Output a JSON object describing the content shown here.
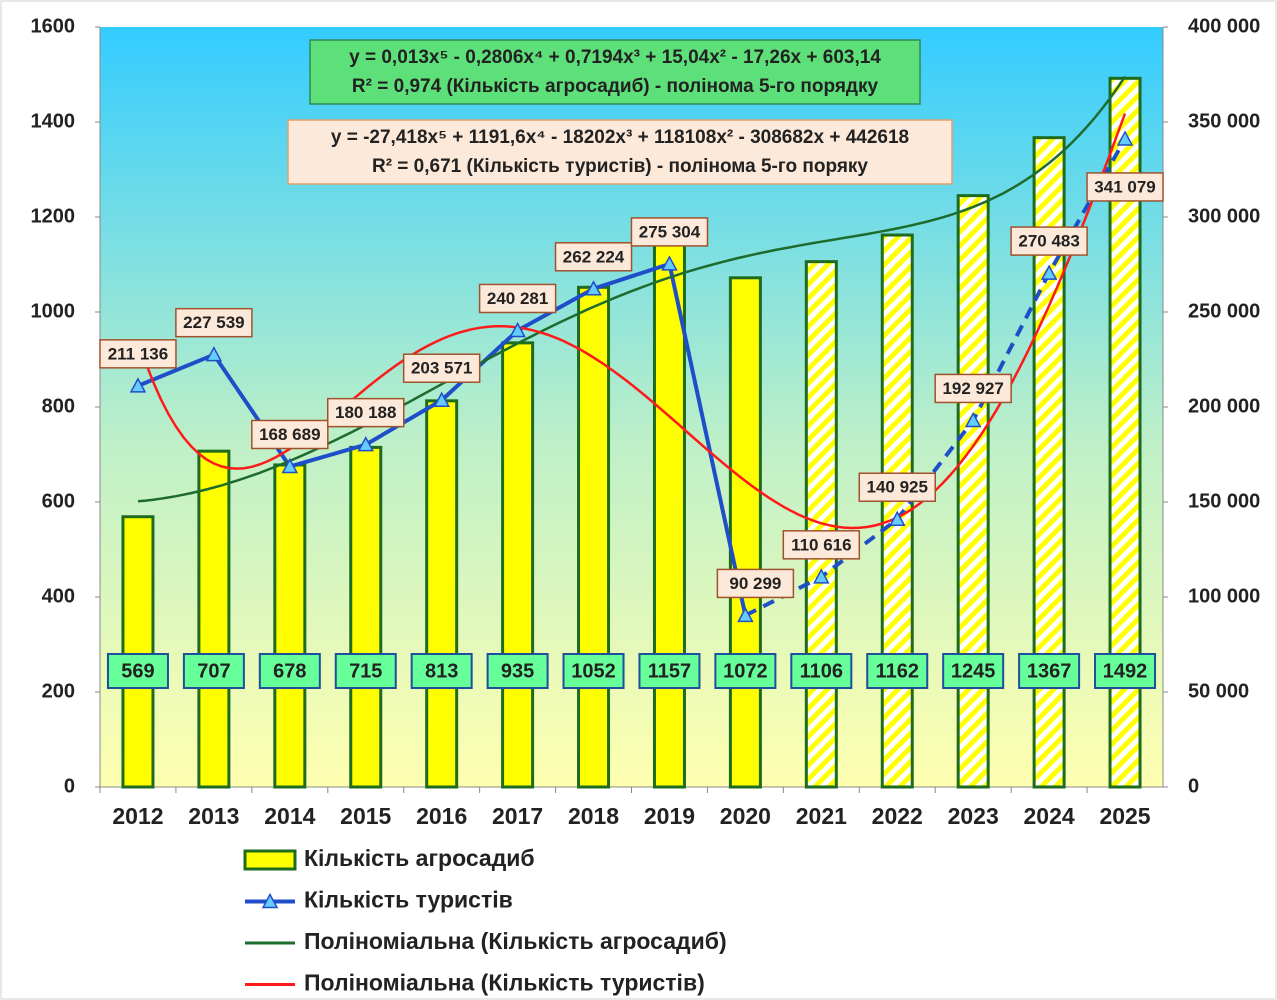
{
  "chart_data": {
    "type": "bar_line",
    "categories": [
      "2012",
      "2013",
      "2014",
      "2015",
      "2016",
      "2017",
      "2018",
      "2019",
      "2020",
      "2021",
      "2022",
      "2023",
      "2024",
      "2025"
    ],
    "forecast_from": "2021",
    "series": [
      {
        "name": "Кількість агросадиб",
        "type": "bar",
        "color": "#ffff00",
        "border": "#1e6b1e",
        "values": [
          569,
          707,
          678,
          715,
          813,
          935,
          1052,
          1157,
          1072,
          1106,
          1162,
          1245,
          1367,
          1492
        ]
      },
      {
        "name": "Кількість туристів",
        "type": "line",
        "axis": "y2",
        "color": "#1f4fc8",
        "values": [
          211136,
          227539,
          168689,
          180188,
          203571,
          240281,
          262224,
          275304,
          90299,
          110616,
          140925,
          192927,
          270483,
          341079
        ],
        "value_labels": [
          "211 136",
          "227 539",
          "168 689",
          "180 188",
          "203 571",
          "240 281",
          "262 224",
          "275 304",
          "90 299",
          "110 616",
          "140 925",
          "192 927",
          "270 483",
          "341 079"
        ]
      }
    ],
    "trendlines": [
      {
        "name": "Поліноміальна (Кількість агросадиб)",
        "color": "#1e6b2e",
        "axis": "y",
        "coefficients": [
          0.013,
          -0.2806,
          0.7194,
          15.04,
          -17.26,
          603.14
        ],
        "equation": [
          "y = 0,013x⁵ - 0,2806x⁴ + 0,7194x³ + 15,04x² - 17,26x + 603,14",
          "R² = 0,974 (Кількість агросадиб)  - полінома 5-го порядку"
        ]
      },
      {
        "name": "Поліноміальна (Кількість туристів)",
        "color": "#ff1a1a",
        "axis": "y2",
        "coefficients": [
          -27.418,
          1191.6,
          -18202,
          118108,
          -308682,
          442618
        ],
        "equation": [
          "y = -27,418x⁵ + 1191,6x⁴ - 18202x³ + 118108x² - 308682x + 442618",
          "R² = 0,671 (Кількість туристів) - полінома 5-го поряку"
        ]
      }
    ],
    "ylim": [
      0,
      1600
    ],
    "yticks": [
      0,
      200,
      400,
      600,
      800,
      1000,
      1200,
      1400,
      1600
    ],
    "y2lim": [
      0,
      400000
    ],
    "y2ticks": [
      0,
      {
        "value": 50000,
        "label": "50 000"
      },
      {
        "value": 100000,
        "label": "100 000"
      },
      {
        "value": 150000,
        "label": "150 000"
      },
      {
        "value": 200000,
        "label": "200 000"
      },
      {
        "value": 250000,
        "label": "250 000"
      },
      {
        "value": 300000,
        "label": "300 000"
      },
      {
        "value": 350000,
        "label": "350 000"
      },
      {
        "value": 400000,
        "label": "400 000"
      }
    ],
    "legend": "bottom"
  }
}
